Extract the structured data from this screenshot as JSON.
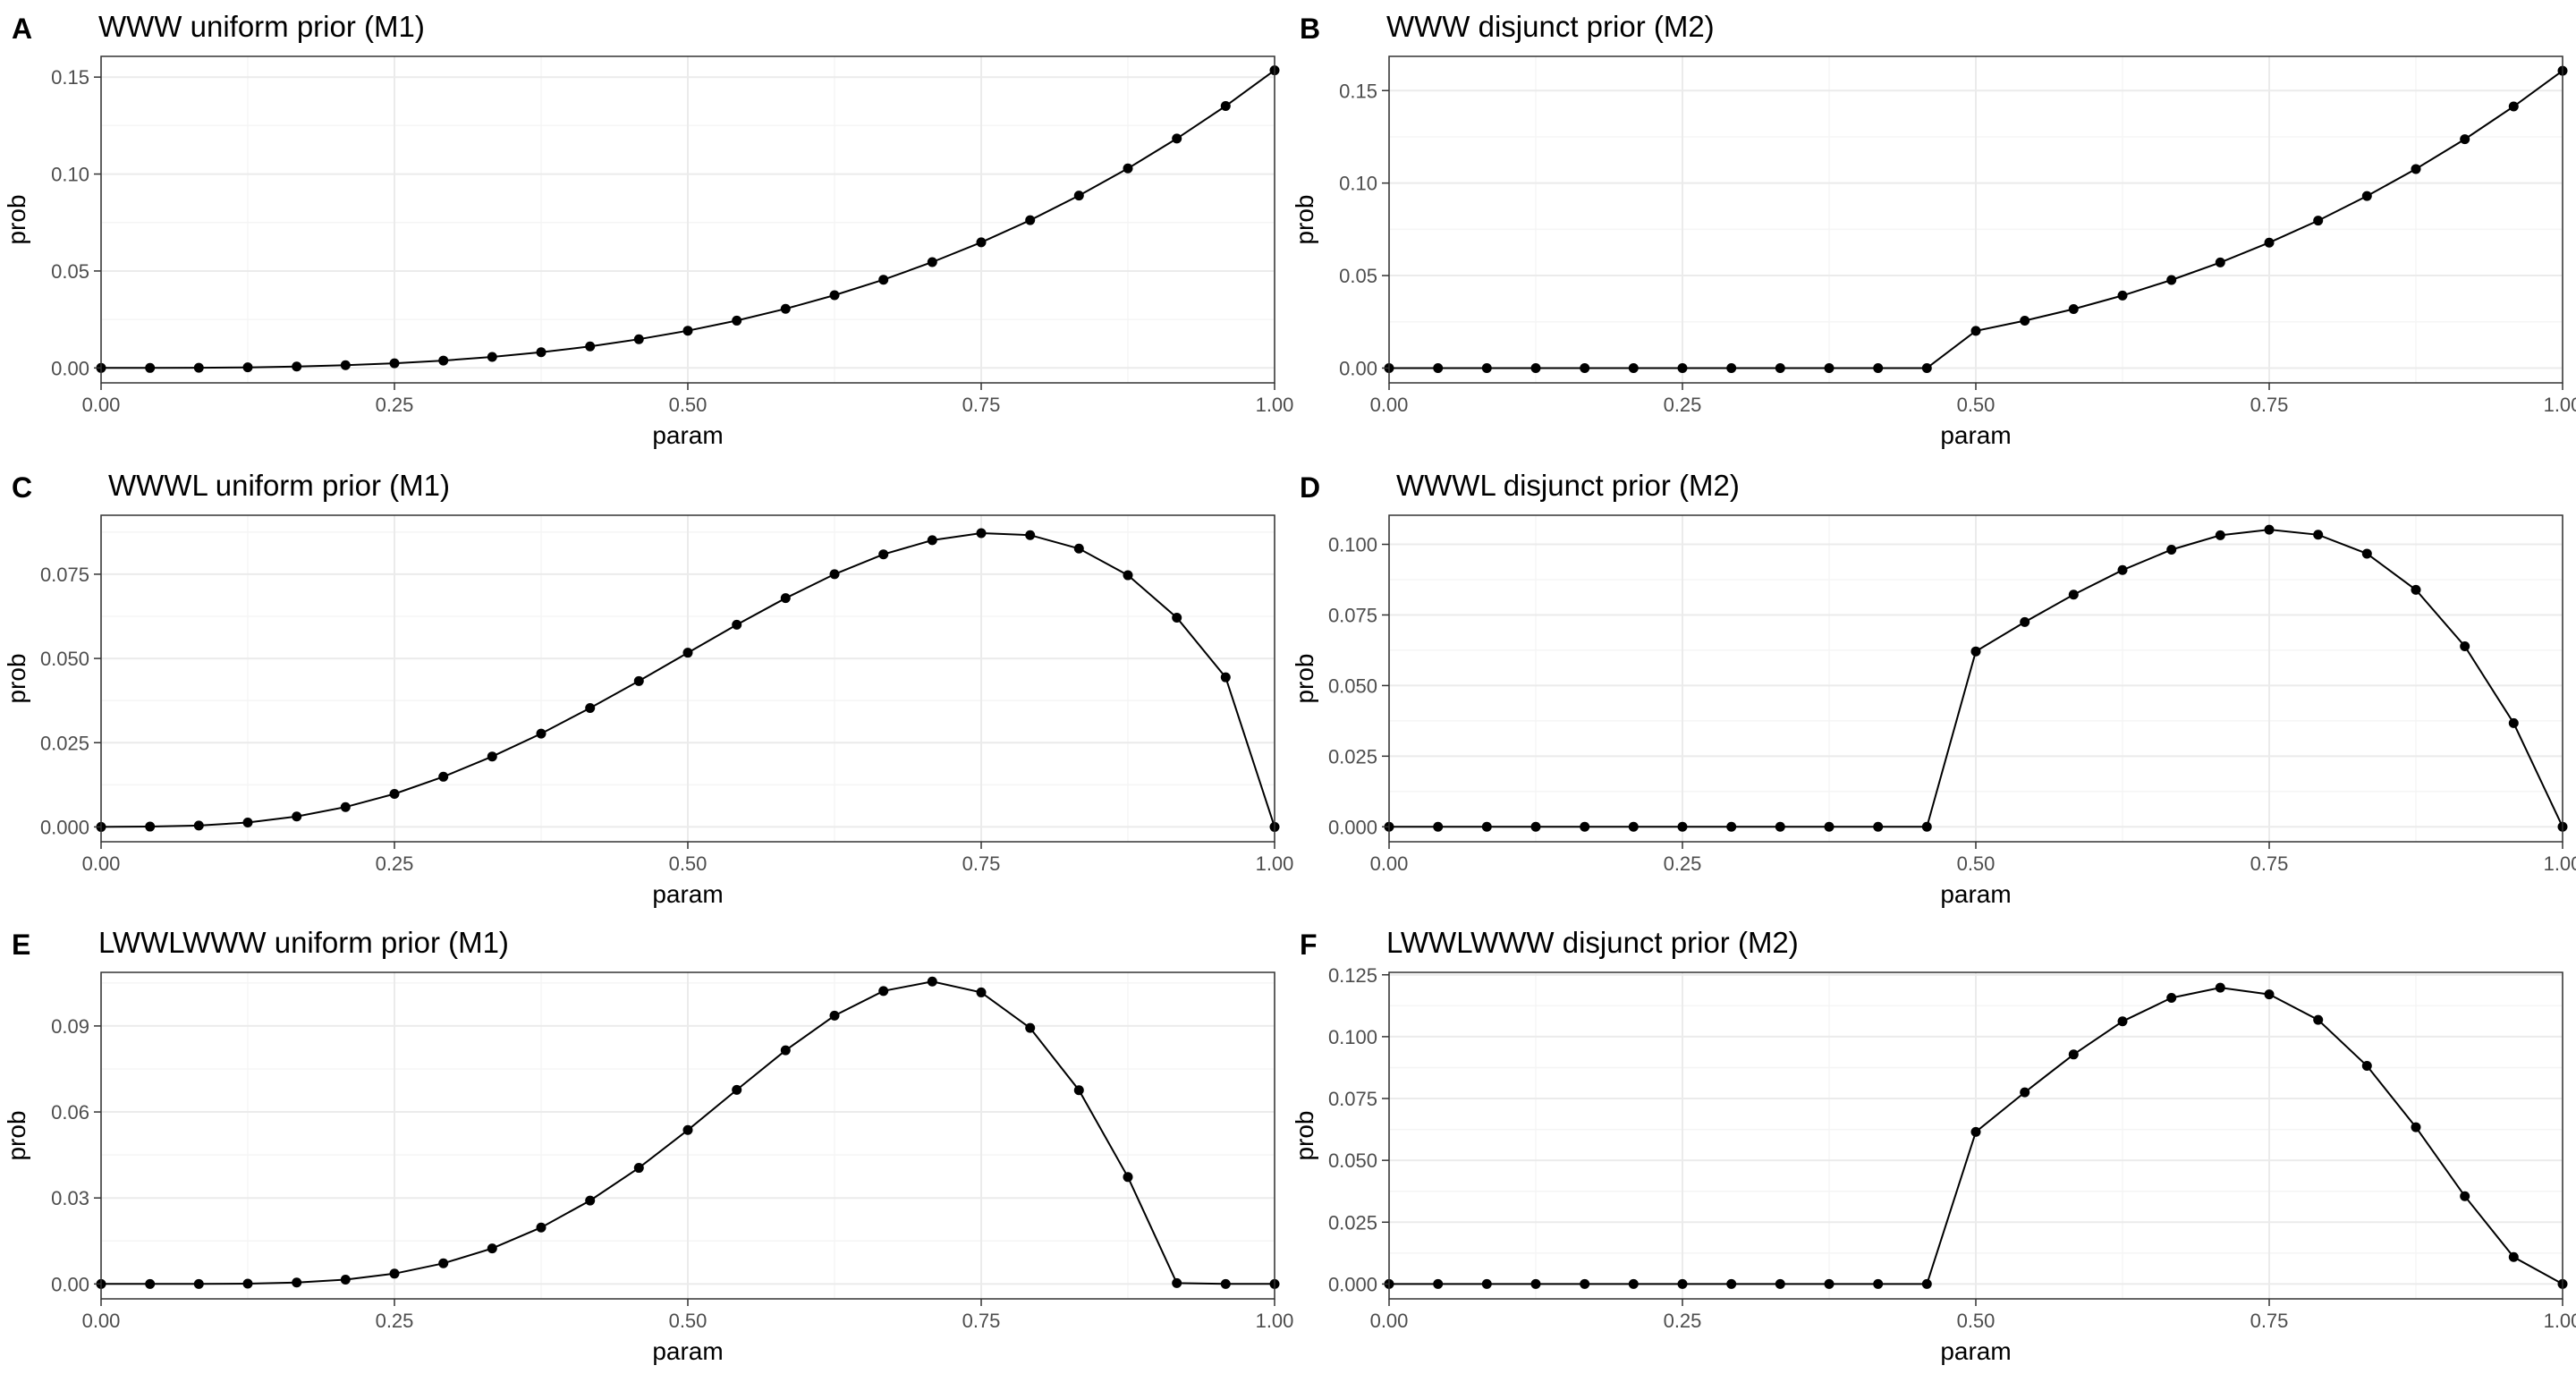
{
  "chart_data": [
    {
      "id": "A",
      "type": "line",
      "panel_label": "A",
      "title": "WWW uniform prior (M1)",
      "xlabel": "param",
      "ylabel": "prob",
      "xlim": [
        0,
        1
      ],
      "ylim": [
        -0.0077,
        0.1607
      ],
      "x_ticks": [
        0,
        0.25,
        0.5,
        0.75,
        1
      ],
      "x_tick_labels": [
        "0.00",
        "0.25",
        "0.50",
        "0.75",
        "1.00"
      ],
      "y_ticks": [
        0,
        0.05,
        0.1,
        0.15
      ],
      "y_tick_labels": [
        "0.00",
        "0.05",
        "0.10",
        "0.15"
      ],
      "grid": true,
      "x": [
        0,
        0.0417,
        0.0833,
        0.125,
        0.1667,
        0.2083,
        0.25,
        0.2917,
        0.3333,
        0.375,
        0.4167,
        0.4583,
        0.5,
        0.5417,
        0.5833,
        0.625,
        0.6667,
        0.7083,
        0.75,
        0.7917,
        0.8333,
        0.875,
        0.9167,
        0.9583,
        1
      ],
      "y": [
        0,
        0,
        0.0001,
        0.0003,
        0.0007,
        0.0014,
        0.0024,
        0.0038,
        0.0057,
        0.0081,
        0.0111,
        0.0148,
        0.0192,
        0.0244,
        0.0305,
        0.0375,
        0.0455,
        0.0546,
        0.0648,
        0.0762,
        0.0889,
        0.1029,
        0.1183,
        0.1351,
        0.1535
      ]
    },
    {
      "id": "B",
      "type": "line",
      "panel_label": "B",
      "title": "WWW disjunct prior (M2)",
      "xlabel": "param",
      "ylabel": "prob",
      "xlim": [
        0,
        1
      ],
      "ylim": [
        -0.008,
        0.1685
      ],
      "x_ticks": [
        0,
        0.25,
        0.5,
        0.75,
        1
      ],
      "x_tick_labels": [
        "0.00",
        "0.25",
        "0.50",
        "0.75",
        "1.00"
      ],
      "y_ticks": [
        0,
        0.05,
        0.1,
        0.15
      ],
      "y_tick_labels": [
        "0.00",
        "0.05",
        "0.10",
        "0.15"
      ],
      "grid": true,
      "x": [
        0,
        0.0417,
        0.0833,
        0.125,
        0.1667,
        0.2083,
        0.25,
        0.2917,
        0.3333,
        0.375,
        0.4167,
        0.4583,
        0.5,
        0.5417,
        0.5833,
        0.625,
        0.6667,
        0.7083,
        0.75,
        0.7917,
        0.8333,
        0.875,
        0.9167,
        0.9583,
        1
      ],
      "y": [
        0,
        0,
        0,
        0,
        0,
        0,
        0,
        0,
        0,
        0,
        0,
        0,
        0.0201,
        0.0256,
        0.0319,
        0.0392,
        0.0476,
        0.0571,
        0.0678,
        0.0797,
        0.093,
        0.1076,
        0.1237,
        0.1414,
        0.1607
      ]
    },
    {
      "id": "C",
      "type": "line",
      "panel_label": "C",
      "title": "WWWL uniform prior (M1)",
      "xlabel": "param",
      "ylabel": "prob",
      "xlim": [
        0,
        1
      ],
      "ylim": [
        -0.0044,
        0.0925
      ],
      "x_ticks": [
        0,
        0.25,
        0.5,
        0.75,
        1
      ],
      "x_tick_labels": [
        "0.00",
        "0.25",
        "0.50",
        "0.75",
        "1.00"
      ],
      "y_ticks": [
        0,
        0.025,
        0.05,
        0.075
      ],
      "y_tick_labels": [
        "0.000",
        "0.025",
        "0.050",
        "0.075"
      ],
      "grid": true,
      "x": [
        0,
        0.0417,
        0.0833,
        0.125,
        0.1667,
        0.2083,
        0.25,
        0.2917,
        0.3333,
        0.375,
        0.4167,
        0.4583,
        0.5,
        0.5417,
        0.5833,
        0.625,
        0.6667,
        0.7083,
        0.75,
        0.7917,
        0.8333,
        0.875,
        0.9167,
        0.9583,
        1
      ],
      "y": [
        0,
        0.0001,
        0.0004,
        0.0013,
        0.0031,
        0.0059,
        0.0098,
        0.0149,
        0.0209,
        0.0277,
        0.0353,
        0.0433,
        0.0517,
        0.06,
        0.0679,
        0.075,
        0.0809,
        0.0851,
        0.0872,
        0.0866,
        0.0826,
        0.0747,
        0.0621,
        0.0444,
        0
      ]
    },
    {
      "id": "D",
      "type": "line",
      "panel_label": "D",
      "title": "WWWL disjunct prior (M2)",
      "xlabel": "param",
      "ylabel": "prob",
      "xlim": [
        0,
        1
      ],
      "ylim": [
        -0.0053,
        0.1103
      ],
      "x_ticks": [
        0,
        0.25,
        0.5,
        0.75,
        1
      ],
      "x_tick_labels": [
        "0.00",
        "0.25",
        "0.50",
        "0.75",
        "1.00"
      ],
      "y_ticks": [
        0,
        0.025,
        0.05,
        0.075,
        0.1
      ],
      "y_tick_labels": [
        "0.000",
        "0.025",
        "0.050",
        "0.075",
        "0.100"
      ],
      "grid": true,
      "x": [
        0,
        0.0417,
        0.0833,
        0.125,
        0.1667,
        0.2083,
        0.25,
        0.2917,
        0.3333,
        0.375,
        0.4167,
        0.4583,
        0.5,
        0.5417,
        0.5833,
        0.625,
        0.6667,
        0.7083,
        0.75,
        0.7917,
        0.8333,
        0.875,
        0.9167,
        0.9583,
        1
      ],
      "y": [
        0,
        0,
        0,
        0,
        0,
        0,
        0,
        0,
        0,
        0,
        0,
        0,
        0.0621,
        0.0725,
        0.0822,
        0.0909,
        0.0981,
        0.1032,
        0.1052,
        0.1034,
        0.0967,
        0.0839,
        0.0639,
        0.0367,
        0
      ]
    },
    {
      "id": "E",
      "type": "line",
      "panel_label": "E",
      "title": "LWWLWWW uniform prior (M1)",
      "xlabel": "param",
      "ylabel": "prob",
      "xlim": [
        0,
        1
      ],
      "ylim": [
        -0.0052,
        0.1087
      ],
      "x_ticks": [
        0,
        0.25,
        0.5,
        0.75,
        1
      ],
      "x_tick_labels": [
        "0.00",
        "0.25",
        "0.50",
        "0.75",
        "1.00"
      ],
      "y_ticks": [
        0,
        0.03,
        0.06,
        0.09
      ],
      "y_tick_labels": [
        "0.00",
        "0.03",
        "0.06",
        "0.09"
      ],
      "grid": true,
      "x": [
        0,
        0.0417,
        0.0833,
        0.125,
        0.1667,
        0.2083,
        0.25,
        0.2917,
        0.3333,
        0.375,
        0.4167,
        0.4583,
        0.5,
        0.5417,
        0.5833,
        0.625,
        0.6667,
        0.7083,
        0.75,
        0.7917,
        0.8333,
        0.875,
        0.9167,
        0.9583,
        1
      ],
      "y": [
        0,
        0,
        0,
        0.0001,
        0.0005,
        0.0015,
        0.0036,
        0.0072,
        0.0124,
        0.0197,
        0.0291,
        0.0405,
        0.0537,
        0.0677,
        0.0815,
        0.0936,
        0.1022,
        0.1055,
        0.1017,
        0.0893,
        0.0676,
        0.0373,
        0.0003,
        -0.0,
        0
      ]
    },
    {
      "id": "F",
      "type": "line",
      "panel_label": "F",
      "title": "LWWLWWW disjunct prior (M2)",
      "xlabel": "param",
      "ylabel": "prob",
      "xlim": [
        0,
        1
      ],
      "ylim": [
        -0.006,
        0.126
      ],
      "x_ticks": [
        0,
        0.25,
        0.5,
        0.75,
        1
      ],
      "x_tick_labels": [
        "0.00",
        "0.25",
        "0.50",
        "0.75",
        "1.00"
      ],
      "y_ticks": [
        0,
        0.025,
        0.05,
        0.075,
        0.1,
        0.125
      ],
      "y_tick_labels": [
        "0.000",
        "0.025",
        "0.050",
        "0.075",
        "0.100",
        "0.125"
      ],
      "grid": true,
      "x": [
        0,
        0.0417,
        0.0833,
        0.125,
        0.1667,
        0.2083,
        0.25,
        0.2917,
        0.3333,
        0.375,
        0.4167,
        0.4583,
        0.5,
        0.5417,
        0.5833,
        0.625,
        0.6667,
        0.7083,
        0.75,
        0.7917,
        0.8333,
        0.875,
        0.9167,
        0.9583,
        1
      ],
      "y": [
        0,
        0,
        0,
        0,
        0,
        0,
        0,
        0,
        0,
        0,
        0,
        0,
        0.0615,
        0.0775,
        0.0928,
        0.1062,
        0.1157,
        0.1198,
        0.1171,
        0.1068,
        0.0882,
        0.0634,
        0.0355,
        0.0109,
        0
      ]
    }
  ]
}
